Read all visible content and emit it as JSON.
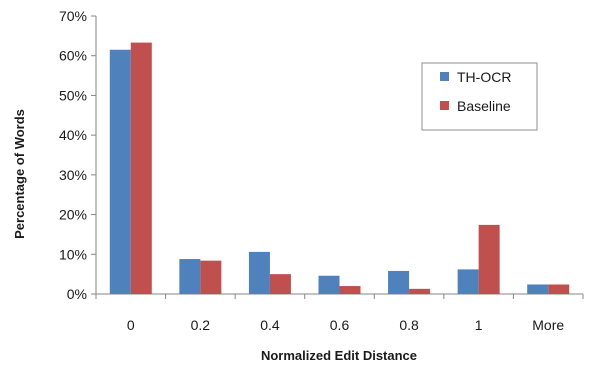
{
  "chart_data": {
    "type": "bar",
    "title": "",
    "xlabel": "Normalized Edit Distance",
    "ylabel": "Percentage of Words",
    "categories": [
      "0",
      "0.2",
      "0.4",
      "0.6",
      "0.8",
      "1",
      "More"
    ],
    "ylim": [
      0,
      70
    ],
    "yticks": [
      0,
      10,
      20,
      30,
      40,
      50,
      60,
      70
    ],
    "ytick_labels": [
      "0%",
      "10%",
      "20%",
      "30%",
      "40%",
      "50%",
      "60%",
      "70%"
    ],
    "series": [
      {
        "name": "TH-OCR",
        "color": "#4F81BD",
        "values": [
          61.5,
          8.8,
          10.6,
          4.6,
          5.8,
          6.2,
          2.4
        ]
      },
      {
        "name": "Baseline",
        "color": "#C0504D",
        "values": [
          63.3,
          8.4,
          5.0,
          2.0,
          1.3,
          17.4,
          2.4
        ]
      }
    ],
    "grid": false,
    "legend": "upper-right"
  }
}
